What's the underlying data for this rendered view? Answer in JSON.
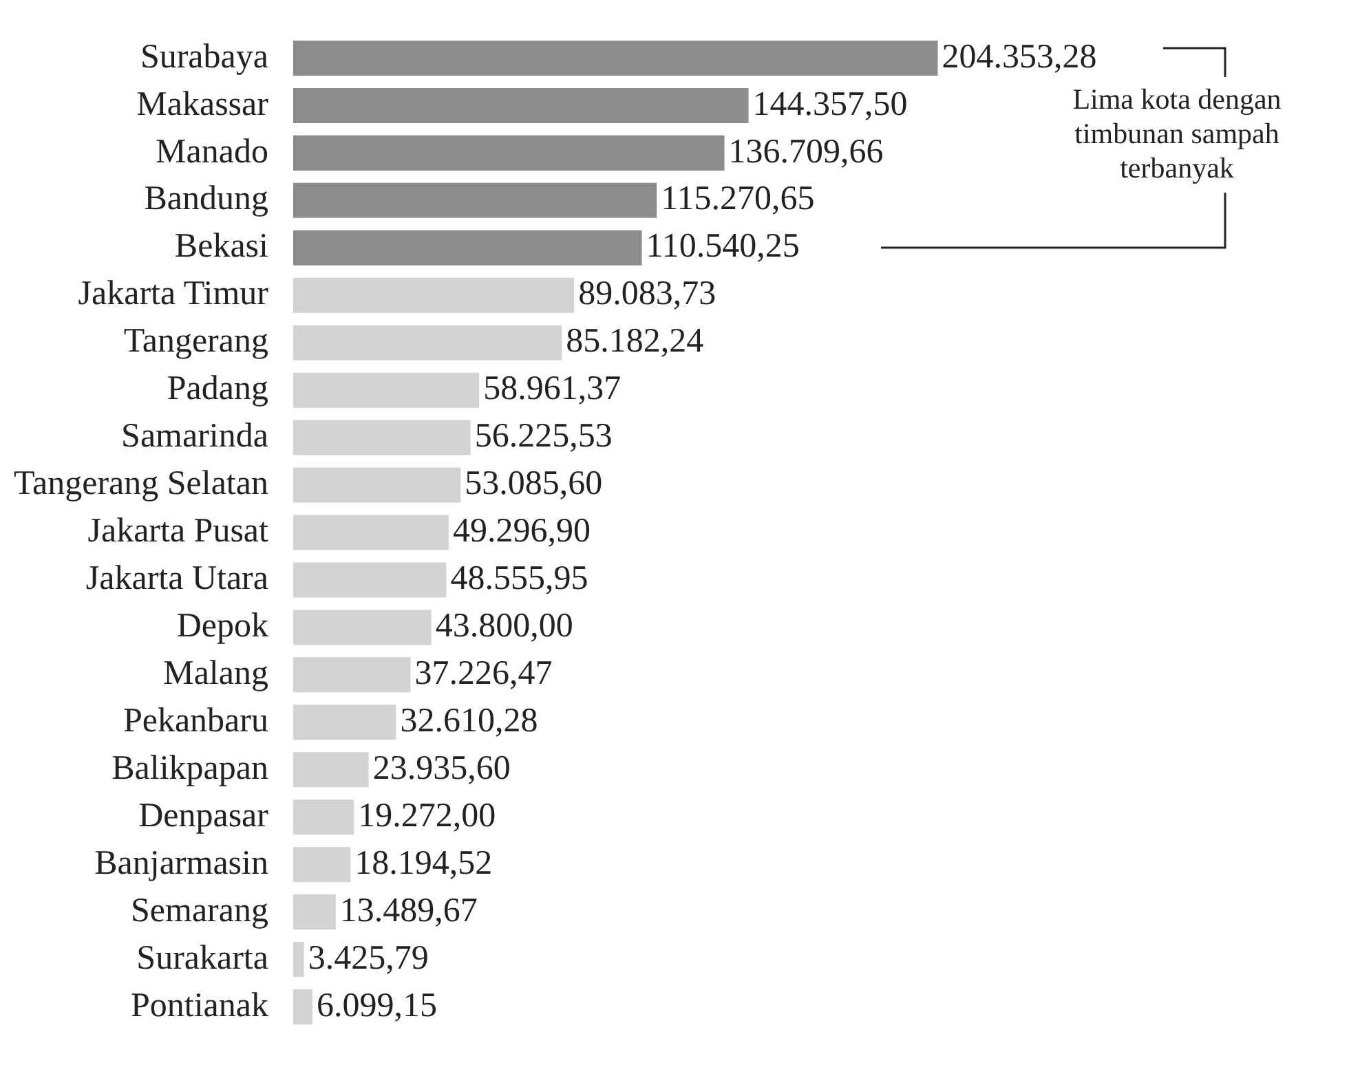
{
  "chart_data": {
    "type": "bar",
    "orientation": "horizontal",
    "categories": [
      "Surabaya",
      "Makassar",
      "Manado",
      "Bandung",
      "Bekasi",
      "Jakarta Timur",
      "Tangerang",
      "Padang",
      "Samarinda",
      "Tangerang Selatan",
      "Jakarta Pusat",
      "Jakarta Utara",
      "Depok",
      "Malang",
      "Pekanbaru",
      "Balikpapan",
      "Denpasar",
      "Banjarmasin",
      "Semarang",
      "Surakarta",
      "Pontianak"
    ],
    "values": [
      204353.28,
      144357.5,
      136709.66,
      115270.65,
      110540.25,
      89083.73,
      85182.24,
      58961.37,
      56225.53,
      53085.6,
      49296.9,
      48555.95,
      43800.0,
      37226.47,
      32610.28,
      23935.6,
      19272.0,
      18194.52,
      13489.67,
      3425.79,
      6099.15
    ],
    "value_labels": [
      "204.353,28",
      "144.357,50",
      "136.709,66",
      "115.270,65",
      "110.540,25",
      "89.083,73",
      "85.182,24",
      "58.961,37",
      "56.225,53",
      "53.085,60",
      "49.296,90",
      "48.555,95",
      "43.800,00",
      "37.226,47",
      "32.610,28",
      "23.935,60",
      "19.272,00",
      "18.194,52",
      "13.489,67",
      "3.425,79",
      "6.099,15"
    ],
    "colors": [
      "#8c8c8c",
      "#8c8c8c",
      "#8c8c8c",
      "#8c8c8c",
      "#8c8c8c",
      "#d3d3d3",
      "#d3d3d3",
      "#d3d3d3",
      "#d3d3d3",
      "#d3d3d3",
      "#d3d3d3",
      "#d3d3d3",
      "#d3d3d3",
      "#d3d3d3",
      "#d3d3d3",
      "#d3d3d3",
      "#d3d3d3",
      "#d3d3d3",
      "#d3d3d3",
      "#d3d3d3",
      "#d3d3d3"
    ],
    "annotations": [
      "Lima kota dengan timbunan sampah terbanyak"
    ],
    "grid": false,
    "legend": false
  }
}
